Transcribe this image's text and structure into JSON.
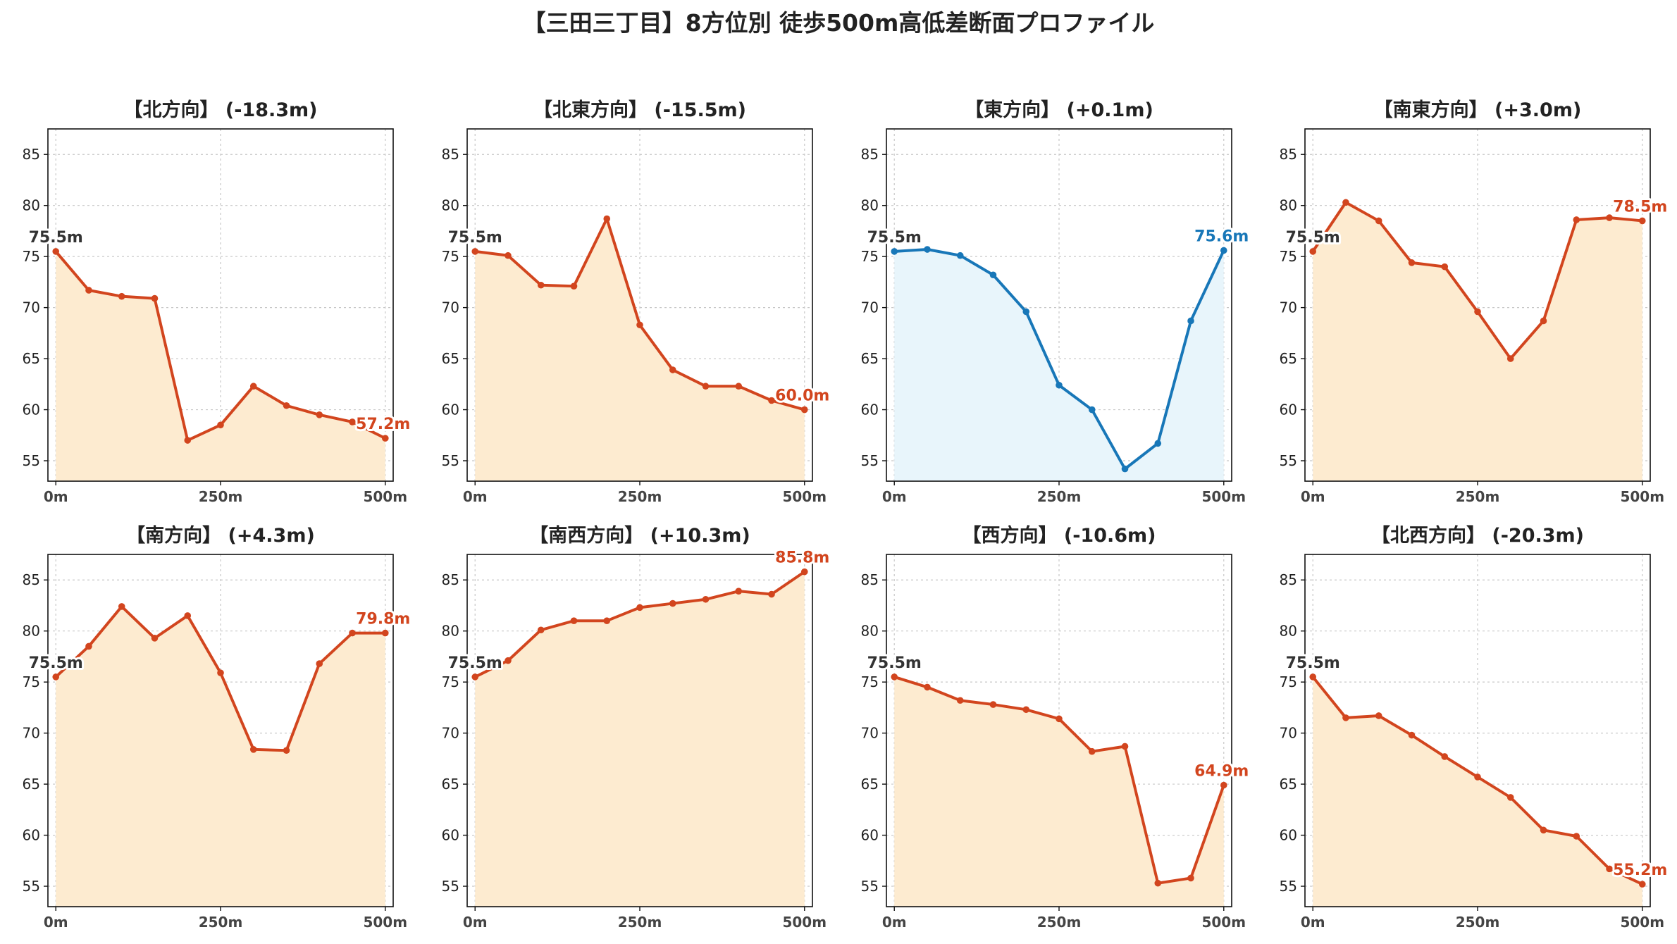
{
  "title": "【三田三丁目】8方位別 徒歩500m高低差断面プロファイル",
  "colors": {
    "descent": "#d2451e",
    "descent_fill": "#fdebd0",
    "loop": "#1877b8",
    "loop_fill": "#e8f5fb",
    "start_label": "#333333"
  },
  "chart_data": [
    {
      "type": "line",
      "title": "【北方向】 (-18.3m)",
      "style": "descent",
      "x": [
        0,
        50,
        100,
        150,
        200,
        250,
        300,
        350,
        400,
        450,
        500
      ],
      "y": [
        75.5,
        71.7,
        71.1,
        70.9,
        57.0,
        58.5,
        62.3,
        60.4,
        59.5,
        58.8,
        57.2
      ],
      "start_label": "75.5m",
      "end_label": "57.2m",
      "xticks": [
        "0m",
        "250m",
        "500m"
      ],
      "yticks": [
        55,
        60,
        65,
        70,
        75,
        80,
        85
      ],
      "ylim": [
        53,
        87.5
      ],
      "xlim": [
        -12,
        512
      ],
      "grid": true
    },
    {
      "type": "line",
      "title": "【北東方向】 (-15.5m)",
      "style": "descent",
      "x": [
        0,
        50,
        100,
        150,
        200,
        250,
        300,
        350,
        400,
        450,
        500
      ],
      "y": [
        75.5,
        75.1,
        72.2,
        72.1,
        78.7,
        68.3,
        63.9,
        62.3,
        62.3,
        60.9,
        60.0
      ],
      "start_label": "75.5m",
      "end_label": "60.0m",
      "xticks": [
        "0m",
        "250m",
        "500m"
      ],
      "yticks": [
        55,
        60,
        65,
        70,
        75,
        80,
        85
      ],
      "ylim": [
        53,
        87.5
      ],
      "xlim": [
        -12,
        512
      ],
      "grid": true
    },
    {
      "type": "line",
      "title": "【東方向】 (+0.1m)",
      "style": "loop",
      "x": [
        0,
        50,
        100,
        150,
        200,
        250,
        300,
        350,
        400,
        450,
        500
      ],
      "y": [
        75.5,
        75.7,
        75.1,
        73.2,
        69.6,
        62.4,
        60.0,
        54.2,
        56.7,
        68.7,
        75.6
      ],
      "start_label": "75.5m",
      "end_label": "75.6m",
      "xticks": [
        "0m",
        "250m",
        "500m"
      ],
      "yticks": [
        55,
        60,
        65,
        70,
        75,
        80,
        85
      ],
      "ylim": [
        53,
        87.5
      ],
      "xlim": [
        -12,
        512
      ],
      "grid": true
    },
    {
      "type": "line",
      "title": "【南東方向】 (+3.0m)",
      "style": "descent",
      "x": [
        0,
        50,
        100,
        150,
        200,
        250,
        300,
        350,
        400,
        450,
        500
      ],
      "y": [
        75.5,
        80.3,
        78.5,
        74.4,
        74.0,
        69.6,
        65.0,
        68.7,
        78.6,
        78.8,
        78.5
      ],
      "start_label": "75.5m",
      "end_label": "78.5m",
      "xticks": [
        "0m",
        "250m",
        "500m"
      ],
      "yticks": [
        55,
        60,
        65,
        70,
        75,
        80,
        85
      ],
      "ylim": [
        53,
        87.5
      ],
      "xlim": [
        -12,
        512
      ],
      "grid": true
    },
    {
      "type": "line",
      "title": "【南方向】 (+4.3m)",
      "style": "descent",
      "x": [
        0,
        50,
        100,
        150,
        200,
        250,
        300,
        350,
        400,
        450,
        500
      ],
      "y": [
        75.5,
        78.5,
        82.4,
        79.3,
        81.5,
        75.9,
        68.4,
        68.3,
        76.8,
        79.8,
        79.8
      ],
      "start_label": "75.5m",
      "end_label": "79.8m",
      "xticks": [
        "0m",
        "250m",
        "500m"
      ],
      "yticks": [
        55,
        60,
        65,
        70,
        75,
        80,
        85
      ],
      "ylim": [
        53,
        87.5
      ],
      "xlim": [
        -12,
        512
      ],
      "grid": true
    },
    {
      "type": "line",
      "title": "【南西方向】 (+10.3m)",
      "style": "descent",
      "x": [
        0,
        50,
        100,
        150,
        200,
        250,
        300,
        350,
        400,
        450,
        500
      ],
      "y": [
        75.5,
        77.1,
        80.1,
        81.0,
        81.0,
        82.3,
        82.7,
        83.1,
        83.9,
        83.6,
        85.8
      ],
      "start_label": "75.5m",
      "end_label": "85.8m",
      "xticks": [
        "0m",
        "250m",
        "500m"
      ],
      "yticks": [
        55,
        60,
        65,
        70,
        75,
        80,
        85
      ],
      "ylim": [
        53,
        87.5
      ],
      "xlim": [
        -12,
        512
      ],
      "grid": true
    },
    {
      "type": "line",
      "title": "【西方向】 (-10.6m)",
      "style": "descent",
      "x": [
        0,
        50,
        100,
        150,
        200,
        250,
        300,
        350,
        400,
        450,
        500
      ],
      "y": [
        75.5,
        74.5,
        73.2,
        72.8,
        72.3,
        71.4,
        68.2,
        68.7,
        55.3,
        55.8,
        64.9
      ],
      "start_label": "75.5m",
      "end_label": "64.9m",
      "xticks": [
        "0m",
        "250m",
        "500m"
      ],
      "yticks": [
        55,
        60,
        65,
        70,
        75,
        80,
        85
      ],
      "ylim": [
        53,
        87.5
      ],
      "xlim": [
        -12,
        512
      ],
      "grid": true
    },
    {
      "type": "line",
      "title": "【北西方向】 (-20.3m)",
      "style": "descent",
      "x": [
        0,
        50,
        100,
        150,
        200,
        250,
        300,
        350,
        400,
        450,
        500
      ],
      "y": [
        75.5,
        71.5,
        71.7,
        69.8,
        67.7,
        65.7,
        63.7,
        60.5,
        59.9,
        56.7,
        55.2
      ],
      "start_label": "75.5m",
      "end_label": "55.2m",
      "xticks": [
        "0m",
        "250m",
        "500m"
      ],
      "yticks": [
        55,
        60,
        65,
        70,
        75,
        80,
        85
      ],
      "ylim": [
        53,
        87.5
      ],
      "xlim": [
        -12,
        512
      ],
      "grid": true
    }
  ]
}
